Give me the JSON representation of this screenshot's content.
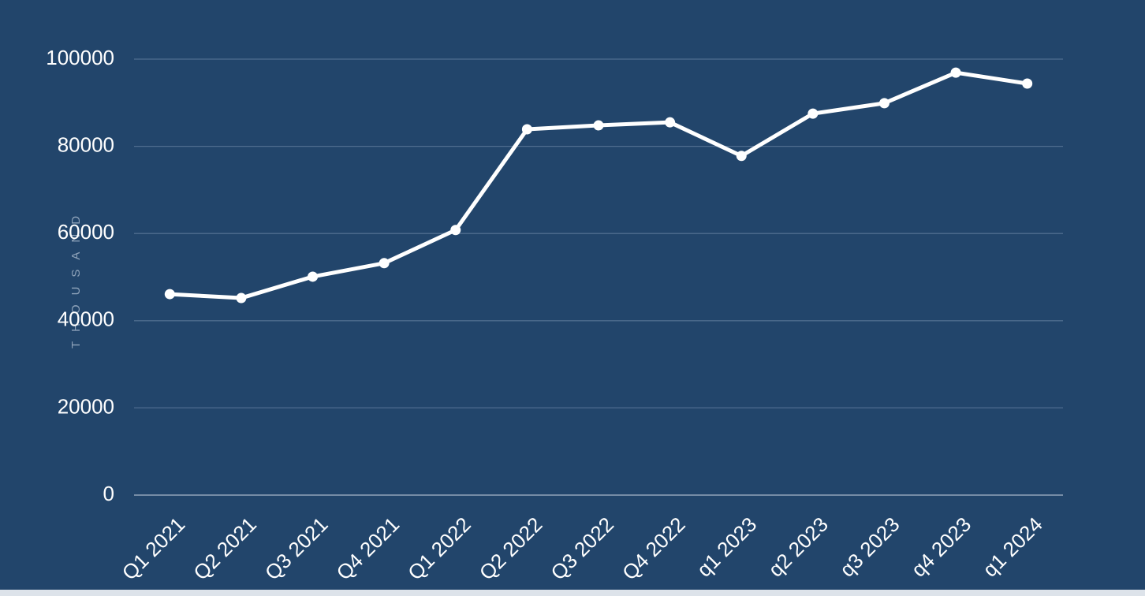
{
  "chart_data": {
    "type": "line",
    "y_label": "THOUSAND",
    "categories": [
      "Q1 2021",
      "Q2 2021",
      "Q3 2021",
      "Q4 2021",
      "Q1 2022",
      "Q2 2022",
      "Q3 2022",
      "Q4 2022",
      "q1 2023",
      "q2 2023",
      "q3 2023",
      "q4 2023",
      "q1 2024"
    ],
    "values": [
      46100,
      45200,
      50100,
      53200,
      60800,
      83900,
      84800,
      85500,
      77800,
      87500,
      89900,
      96900,
      94400
    ],
    "color": "#ffffff",
    "ylim": [
      0,
      100000
    ],
    "yticks": [
      0,
      20000,
      40000,
      60000,
      80000,
      100000
    ],
    "grid": true
  }
}
